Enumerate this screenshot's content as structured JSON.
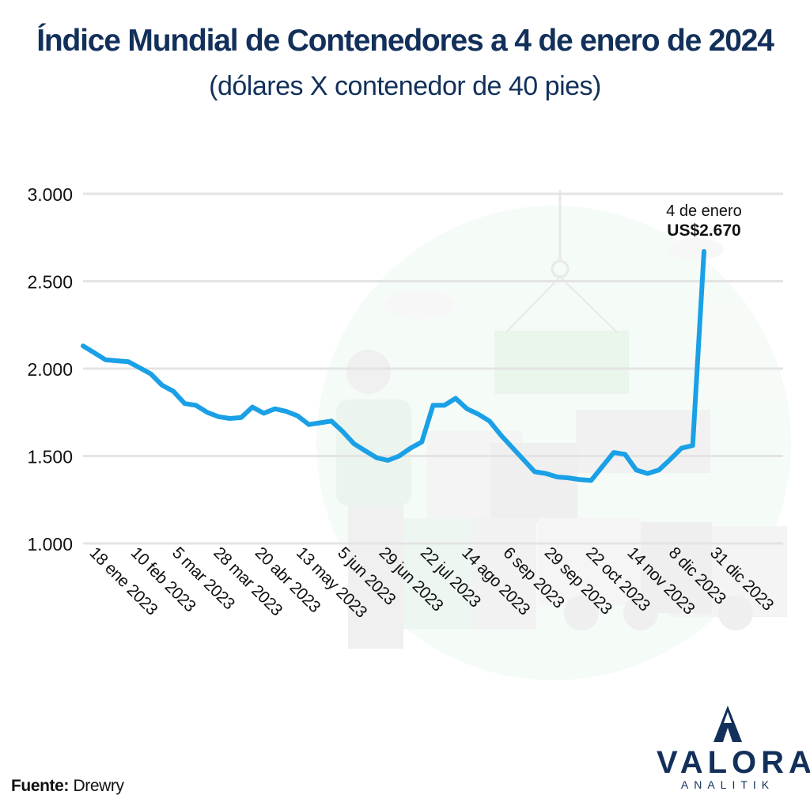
{
  "header": {
    "title": "Índice Mundial de Contenedores a 4 de enero de 2024",
    "subtitle": "(dólares X contenedor de 40 pies)"
  },
  "source": {
    "label": "Fuente:",
    "value": "Drewry"
  },
  "logo": {
    "name": "VALORA",
    "sub": "ANALITIK"
  },
  "colors": {
    "line": "#1aa0e6",
    "title": "#12305a",
    "grid": "#e4e4e4",
    "illustration": "#e8f4ec"
  },
  "chart_data": {
    "type": "line",
    "title": "Índice Mundial de Contenedores a 4 de enero de 2024",
    "subtitle": "(dólares X contenedor de 40 pies)",
    "xlabel": "",
    "ylabel": "",
    "ylim": [
      1000,
      3000
    ],
    "yticks": [
      1000,
      1500,
      2000,
      2500,
      3000
    ],
    "ytick_labels": [
      "1.000",
      "1.500",
      "2.000",
      "2.500",
      "3.000"
    ],
    "grid": true,
    "xtick_labels": [
      "18 ene 2023",
      "10 feb 2023",
      "5 mar 2023",
      "28 mar 2023",
      "20 abr 2023",
      "13 may 2023",
      "5 jun 2023",
      "29 jun 2023",
      "22 jul 2023",
      "14 ago 2023",
      "6 sep 2023",
      "29 sep 2023",
      "22 oct 2023",
      "14 nov 2023",
      "8 dic 2023",
      "31 dic 2023"
    ],
    "series": [
      {
        "values": [
          2130,
          2090,
          2050,
          2045,
          2040,
          2005,
          1970,
          1905,
          1870,
          1800,
          1790,
          1750,
          1725,
          1715,
          1720,
          1780,
          1745,
          1770,
          1755,
          1730,
          1680,
          1690,
          1700,
          1640,
          1570,
          1530,
          1490,
          1475,
          1500,
          1545,
          1580,
          1790,
          1790,
          1830,
          1770,
          1740,
          1700,
          1620,
          1550,
          1480,
          1410,
          1400,
          1380,
          1375,
          1365,
          1360,
          1440,
          1520,
          1510,
          1420,
          1400,
          1420,
          1480,
          1545,
          1560,
          2670
        ]
      }
    ],
    "annotations": [
      {
        "label": "4 de enero",
        "value_label": "US$2.670"
      }
    ]
  }
}
